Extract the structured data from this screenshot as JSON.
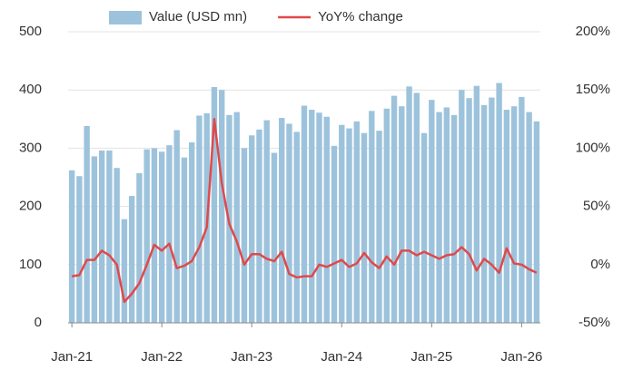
{
  "chart_data": {
    "type": "bar",
    "categories": [
      "Jan-21",
      null,
      null,
      null,
      null,
      null,
      null,
      null,
      null,
      null,
      null,
      null,
      "Jan-22",
      null,
      null,
      null,
      null,
      null,
      null,
      null,
      null,
      null,
      null,
      null,
      "Jan-23",
      null,
      null,
      null,
      null,
      null,
      null,
      null,
      null,
      null,
      null,
      null,
      "Jan-24",
      null,
      null,
      null,
      null,
      null,
      null,
      null,
      null,
      null,
      null,
      null,
      "Jan-25",
      null,
      null,
      null,
      null,
      null,
      null,
      null,
      null,
      null,
      null,
      null,
      "Jan-26",
      null,
      null
    ],
    "series": [
      {
        "name": "Value (USD mn)",
        "type": "bar",
        "color": "#9dc3dc",
        "values": [
          262,
          252,
          338,
          286,
          296,
          296,
          266,
          178,
          218,
          257,
          298,
          300,
          294,
          305,
          331,
          284,
          310,
          356,
          360,
          405,
          400,
          357,
          362,
          300,
          322,
          332,
          348,
          292,
          352,
          342,
          328,
          373,
          366,
          361,
          354,
          304,
          340,
          334,
          346,
          326,
          364,
          330,
          368,
          390,
          372,
          406,
          395,
          326,
          383,
          362,
          370,
          357,
          400,
          386,
          407,
          374,
          387,
          412,
          366,
          372,
          388,
          362,
          346
        ]
      },
      {
        "name": "YoY% change",
        "type": "line",
        "axis": "y2",
        "color": "#e0494b",
        "values": [
          -10,
          -9,
          4,
          4,
          12,
          8,
          0,
          -32,
          -25,
          -16,
          0,
          17,
          12,
          18,
          -3,
          -1,
          3,
          15,
          32,
          125,
          70,
          35,
          20,
          0,
          9,
          9,
          5,
          3,
          11,
          -8,
          -11,
          -10,
          -10,
          0,
          -2,
          1,
          4,
          -2,
          1,
          10,
          2,
          -3,
          7,
          0,
          12,
          12,
          8,
          11,
          8,
          5,
          8,
          9,
          15,
          9,
          -5,
          5,
          0,
          -7,
          14,
          1,
          0,
          -4,
          -7
        ]
      }
    ],
    "ylim": [
      0,
      500
    ],
    "yticks": [
      0,
      100,
      200,
      300,
      400,
      500
    ],
    "y2lim": [
      -50,
      200
    ],
    "y2ticks": [
      {
        "value": -50,
        "label": "-50%"
      },
      {
        "value": 0,
        "label": "0%"
      },
      {
        "value": 50,
        "label": "50%"
      },
      {
        "value": 100,
        "label": "100%"
      },
      {
        "value": 150,
        "label": "150%"
      },
      {
        "value": 200,
        "label": "200%"
      }
    ],
    "grid": true,
    "legend": "top"
  }
}
